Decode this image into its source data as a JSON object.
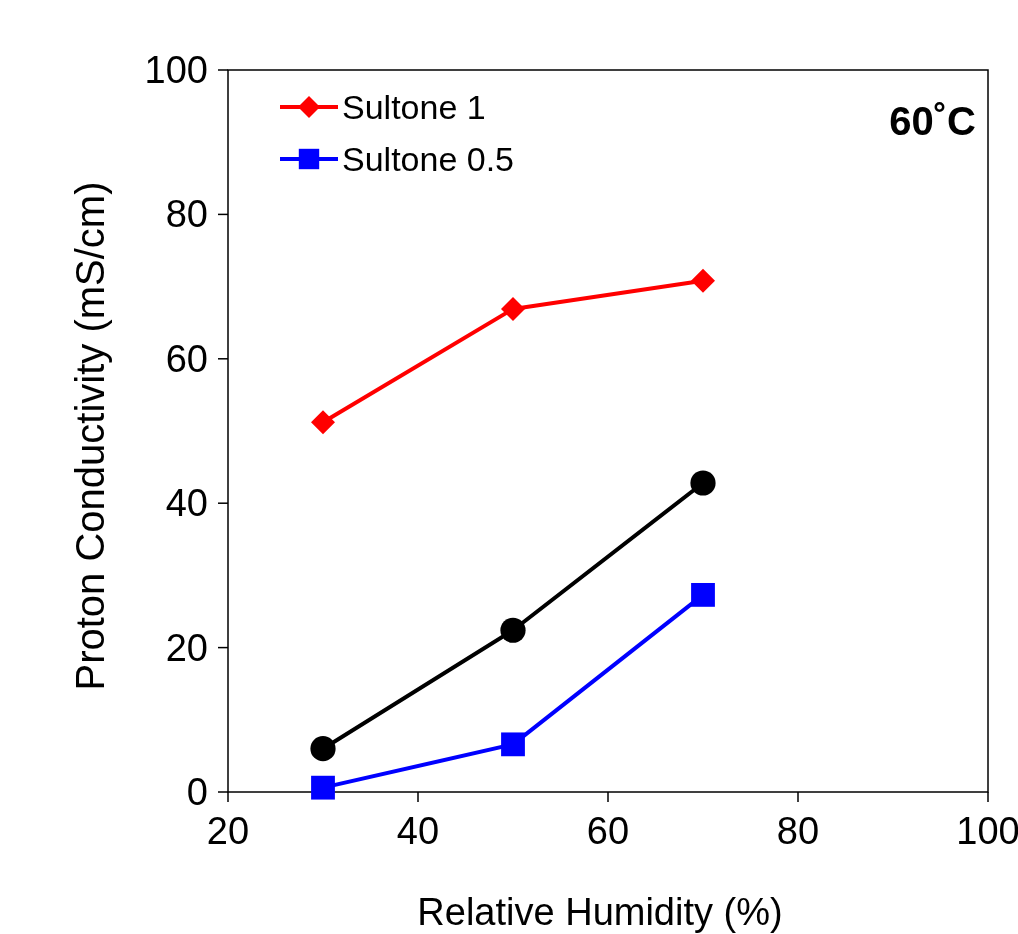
{
  "chart_data": {
    "type": "line",
    "xlabel": "Relative Humidity (%)",
    "ylabel": "Proton Conductivity (mS/cm)",
    "annotations": [
      "60˚C"
    ],
    "x": [
      30,
      50,
      70
    ],
    "xlim": [
      20,
      100
    ],
    "xticks": [
      20,
      40,
      60,
      80,
      100
    ],
    "ylim": [
      0,
      100
    ],
    "yticks": [
      0,
      20,
      40,
      60,
      80,
      100
    ],
    "grid": false,
    "legend": "top left",
    "series": [
      {
        "name": "Sultone 1",
        "color": "#ff0000",
        "marker": "diamond",
        "values": [
          51.2,
          66.9,
          70.8
        ]
      },
      {
        "name": "Sultone 0.5",
        "color": "#0000ff",
        "marker": "square",
        "values": [
          0.6,
          6.6,
          27.3
        ]
      },
      {
        "color": "#000000",
        "marker": "circle",
        "values": [
          6.0,
          22.4,
          42.8
        ]
      }
    ]
  }
}
